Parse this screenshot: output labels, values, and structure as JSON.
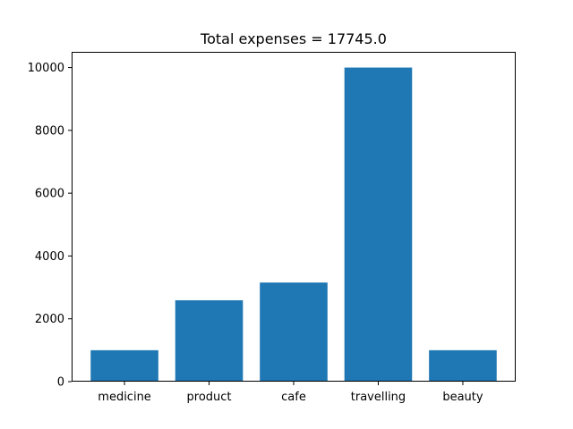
{
  "chart_data": {
    "type": "bar",
    "title": "Total expenses = 17745.0",
    "xlabel": "",
    "ylabel": "",
    "categories": [
      "medicine",
      "product",
      "cafe",
      "travelling",
      "beauty"
    ],
    "values": [
      1000,
      2590,
      3155,
      10000,
      1000
    ],
    "ylim": [
      0,
      10500
    ],
    "yticks": [
      0,
      2000,
      4000,
      6000,
      8000,
      10000
    ],
    "ytick_labels": [
      "0",
      "2000",
      "4000",
      "6000",
      "8000",
      "10000"
    ],
    "bar_color": "#1f77b4",
    "grid": false,
    "legend": "none"
  }
}
